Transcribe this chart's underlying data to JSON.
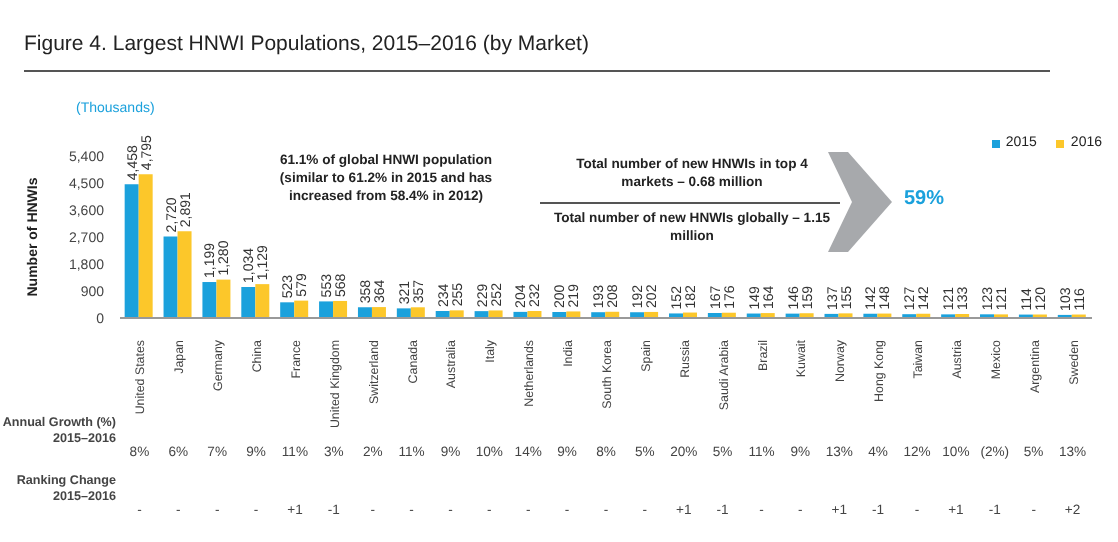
{
  "chart_data": {
    "type": "bar",
    "title": "Figure 4. Largest HNWI Populations, 2015–2016 (by Market)",
    "ylabel": "Number of HNWIs",
    "categories": [
      "United States",
      "Japan",
      "Germany",
      "China",
      "France",
      "United Kingdom",
      "Switzerland",
      "Canada",
      "Australia",
      "Italy",
      "Netherlands",
      "India",
      "South Korea",
      "Spain",
      "Russia",
      "Saudi Arabia",
      "Brazil",
      "Kuwait",
      "Norway",
      "Hong Kong",
      "Taiwan",
      "Austria",
      "Mexico",
      "Argentina",
      "Sweden"
    ],
    "series": [
      {
        "name": "2015",
        "color": "#1ba1dc",
        "values": [
          4458,
          2720,
          1199,
          1034,
          523,
          553,
          358,
          321,
          234,
          229,
          204,
          200,
          193,
          192,
          152,
          167,
          149,
          146,
          137,
          142,
          127,
          121,
          123,
          114,
          103
        ],
        "value_labels": [
          "4,458",
          "2,720",
          "1,199",
          "1,034",
          "523",
          "553",
          "358",
          "321",
          "234",
          "229",
          "204",
          "200",
          "193",
          "192",
          "152",
          "167",
          "149",
          "146",
          "137",
          "142",
          "127",
          "121",
          "123",
          "114",
          "103"
        ]
      },
      {
        "name": "2016",
        "color": "#fcc72a",
        "values": [
          4795,
          2891,
          1280,
          1129,
          579,
          568,
          364,
          357,
          255,
          252,
          232,
          219,
          208,
          202,
          182,
          176,
          164,
          159,
          155,
          148,
          142,
          133,
          121,
          120,
          116
        ],
        "value_labels": [
          "4,795",
          "2,891",
          "1,280",
          "1,129",
          "579",
          "568",
          "364",
          "357",
          "255",
          "252",
          "232",
          "219",
          "208",
          "202",
          "182",
          "176",
          "164",
          "159",
          "155",
          "148",
          "142",
          "133",
          "121",
          "120",
          "116"
        ]
      }
    ],
    "ylim": [
      0,
      5400
    ],
    "yticks": [
      0,
      900,
      {
        "value": 1800,
        "label": "1,800"
      },
      {
        "value": 2700,
        "label": "2,700"
      },
      {
        "value": 3600,
        "label": "3,600"
      },
      {
        "value": 4500,
        "label": "4,500"
      },
      {
        "value": 5400,
        "label": "5,400"
      }
    ],
    "legend": "top right",
    "grid": false,
    "annotations": [
      "(Thousands)",
      "61.1% of global HNWI population (similar to 61.2% in 2015 and has increased from 58.4% in 2012)",
      "Total number of new HNWIs in top 4 markets – 0.68 million",
      "Total number of new HNWIs globally – 1.15 million",
      "59%",
      "Annual Growth (%) 2015–2016",
      "Ranking Change 2015–2016",
      "8%",
      "6%",
      "7%",
      "9%",
      "11%",
      "3%",
      "2%",
      "11%",
      "9%",
      "10%",
      "14%",
      "9%",
      "8%",
      "5%",
      "20%",
      "5%",
      "11%",
      "9%",
      "13%",
      "4%",
      "12%",
      "10%",
      "(2%)",
      "5%",
      "13%",
      "-",
      "-",
      "-",
      "-",
      "+1",
      "-1",
      "-",
      "-",
      "-",
      "-",
      "-",
      "-",
      "-",
      "-",
      "+1",
      "-1",
      "-",
      "-",
      "+1",
      "-1",
      "-",
      "+1",
      "-1",
      "-",
      "+2"
    ]
  }
}
